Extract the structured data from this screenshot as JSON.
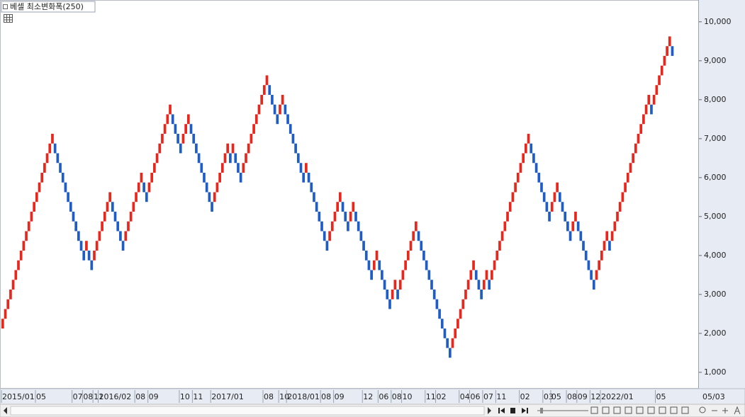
{
  "chart_data": {
    "type": "renko",
    "title": "베셀 최소변화폭(250)",
    "brick_size": 250,
    "up_color": "#e8261c",
    "down_color": "#1e5cc8",
    "ylim": [
      580,
      10560
    ],
    "yticks": [
      {
        "value": 1000,
        "label": "1,000"
      },
      {
        "value": 2000,
        "label": "2,000"
      },
      {
        "value": 3000,
        "label": "3,000"
      },
      {
        "value": 4000,
        "label": "4,000"
      },
      {
        "value": 5000,
        "label": "5,000"
      },
      {
        "value": 6000,
        "label": "6,000"
      },
      {
        "value": 7000,
        "label": "7,000"
      },
      {
        "value": 8000,
        "label": "8,000"
      },
      {
        "value": 9000,
        "label": "9,000"
      },
      {
        "value": 10000,
        "label": "10,000"
      }
    ],
    "x_end_label": "05/03",
    "values": [
      2375,
      2625,
      2875,
      3125,
      3375,
      3625,
      3875,
      4125,
      4375,
      4625,
      4875,
      5125,
      5375,
      5625,
      5875,
      6125,
      6375,
      6625,
      6875,
      7125,
      6625,
      6375,
      6125,
      5875,
      5625,
      5375,
      5125,
      4875,
      4625,
      4375,
      4125,
      3875,
      4375,
      3875,
      3625,
      4125,
      4375,
      4625,
      4875,
      5125,
      5375,
      5625,
      5125,
      4875,
      4625,
      4375,
      4125,
      4625,
      4875,
      5125,
      5375,
      5625,
      5875,
      6125,
      5625,
      5375,
      5875,
      6125,
      6375,
      6625,
      6875,
      7125,
      7375,
      7625,
      7875,
      7375,
      7125,
      6875,
      6625,
      7125,
      7375,
      7625,
      7125,
      6875,
      6625,
      6375,
      6125,
      5875,
      5625,
      5375,
      5125,
      5625,
      5875,
      6125,
      6375,
      6625,
      6875,
      6375,
      6875,
      6375,
      6125,
      5875,
      6375,
      6625,
      6875,
      7125,
      7375,
      7625,
      7875,
      8125,
      8375,
      8625,
      8125,
      7875,
      7625,
      7375,
      7875,
      8125,
      7625,
      7375,
      7125,
      6875,
      6625,
      6375,
      6125,
      5875,
      6375,
      5875,
      5625,
      5375,
      5125,
      4875,
      4625,
      4375,
      4125,
      4625,
      4875,
      5125,
      5375,
      5625,
      5125,
      4875,
      4625,
      5125,
      5375,
      4875,
      4625,
      4375,
      4125,
      3875,
      3625,
      3375,
      3875,
      4125,
      3625,
      3375,
      3125,
      2875,
      2625,
      3125,
      3375,
      2875,
      3375,
      3625,
      3875,
      4125,
      4375,
      4625,
      4875,
      4375,
      4125,
      3875,
      3625,
      3375,
      3125,
      2875,
      2625,
      2375,
      2125,
      1875,
      1625,
      1375,
      1875,
      2125,
      2375,
      2625,
      2875,
      3125,
      3375,
      3625,
      3875,
      3375,
      3125,
      2875,
      3375,
      3625,
      3125,
      3625,
      3875,
      4125,
      4375,
      4625,
      4875,
      5125,
      5375,
      5625,
      5875,
      6125,
      6375,
      6625,
      6875,
      7125,
      6625,
      6375,
      6125,
      5875,
      5625,
      5375,
      5125,
      4875,
      5375,
      5625,
      5875,
      5375,
      5125,
      4875,
      4625,
      4375,
      4875,
      5125,
      4625,
      4375,
      4125,
      3875,
      3625,
      3375,
      3125,
      3625,
      3875,
      4125,
      4375,
      4625,
      4125,
      4625,
      4875,
      5125,
      5375,
      5625,
      5875,
      6125,
      6375,
      6625,
      6875,
      7125,
      7375,
      7625,
      7875,
      8125,
      7625,
      8125,
      8375,
      8625,
      8875,
      9125,
      9375,
      9625,
      9125
    ],
    "categories": [
      "2015/01",
      null,
      null,
      null,
      null,
      null,
      null,
      null,
      null,
      null,
      null,
      null,
      null,
      "05",
      null,
      null,
      null,
      null,
      null,
      null,
      null,
      null,
      null,
      null,
      null,
      null,
      null,
      "07",
      null,
      null,
      null,
      "08",
      null,
      null,
      null,
      "11",
      null,
      "2016/02",
      null,
      null,
      null,
      null,
      null,
      null,
      null,
      null,
      null,
      null,
      null,
      null,
      null,
      "08",
      null,
      null,
      null,
      null,
      "09",
      null,
      null,
      null,
      null,
      null,
      null,
      null,
      null,
      null,
      null,
      null,
      "10",
      null,
      null,
      null,
      null,
      "11",
      null,
      null,
      null,
      null,
      null,
      null,
      "2017/01",
      null,
      null,
      null,
      null,
      null,
      null,
      null,
      null,
      null,
      null,
      null,
      null,
      null,
      null,
      null,
      null,
      null,
      null,
      null,
      "08",
      null,
      null,
      null,
      null,
      null,
      "10",
      null,
      null,
      "2018/01",
      null,
      null,
      null,
      null,
      null,
      null,
      null,
      null,
      null,
      null,
      null,
      null,
      "08",
      null,
      null,
      null,
      null,
      "09",
      null,
      null,
      null,
      null,
      null,
      null,
      null,
      null,
      null,
      null,
      "12",
      null,
      null,
      null,
      null,
      null,
      "06",
      null,
      null,
      null,
      null,
      "08",
      null,
      null,
      null,
      "10",
      null,
      null,
      null,
      null,
      null,
      null,
      null,
      null,
      "11",
      null,
      null,
      null,
      "02",
      null,
      null,
      null,
      null,
      null,
      null,
      null,
      null,
      "04",
      null,
      null,
      null,
      "06",
      null,
      null,
      null,
      null,
      "07",
      null,
      null,
      null,
      null,
      "11",
      null,
      null,
      null,
      null,
      null,
      null,
      null,
      null,
      "02",
      null,
      null,
      null,
      null,
      null,
      null,
      null,
      null,
      "03",
      null,
      null,
      "05",
      null,
      null,
      null,
      null,
      null,
      "08",
      null,
      null,
      null,
      "09",
      null,
      null,
      null,
      null,
      "12",
      null,
      null,
      null,
      "2022/01",
      null,
      null,
      null,
      null,
      null,
      null,
      null,
      null,
      null,
      null,
      null,
      null,
      null,
      null,
      null,
      null,
      null,
      null,
      null,
      null,
      "05",
      null,
      null,
      null,
      null,
      null,
      null
    ]
  }
}
